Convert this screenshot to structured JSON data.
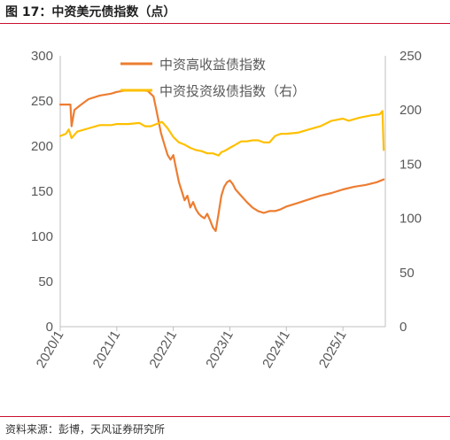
{
  "figure_title": "图 17：中资美元债指数（点）",
  "source_note": "资料来源：彭博，天风证券研究所",
  "colors": {
    "high_yield": "#ED7D31",
    "aggregate": "#FFC000",
    "rule": "#c8102e",
    "axis": "#bfbfbf"
  },
  "chart_data": {
    "type": "line",
    "title": "",
    "xlabel": "",
    "ylabel": "",
    "ylabel_right": "",
    "x_tick_labels": [
      "2020/1",
      "2021/1",
      "2022/1",
      "2023/1",
      "2024/1",
      "2025/1"
    ],
    "x_range": [
      2020.0,
      2025.75
    ],
    "y_left": {
      "ylim": [
        0,
        300
      ],
      "ticks": [
        "0",
        "50",
        "100",
        "150",
        "200",
        "250",
        "300"
      ]
    },
    "y_right": {
      "ylim": [
        0,
        250
      ],
      "ticks": [
        "0",
        "50",
        "100",
        "150",
        "200",
        "250"
      ]
    },
    "grid": false,
    "legend_position": "top-center",
    "series": [
      {
        "name": "中资高收益债指数",
        "axis": "left",
        "color": "#ED7D31",
        "x": [
          2020.0,
          2020.18,
          2020.2,
          2020.25,
          2020.35,
          2020.5,
          2020.7,
          2020.9,
          2021.0,
          2021.2,
          2021.4,
          2021.55,
          2021.65,
          2021.7,
          2021.78,
          2021.85,
          2021.9,
          2021.95,
          2022.0,
          2022.05,
          2022.1,
          2022.15,
          2022.2,
          2022.25,
          2022.3,
          2022.35,
          2022.4,
          2022.45,
          2022.5,
          2022.55,
          2022.6,
          2022.65,
          2022.7,
          2022.75,
          2022.8,
          2022.85,
          2022.9,
          2022.95,
          2023.0,
          2023.05,
          2023.1,
          2023.2,
          2023.3,
          2023.4,
          2023.5,
          2023.6,
          2023.7,
          2023.8,
          2023.9,
          2024.0,
          2024.2,
          2024.4,
          2024.6,
          2024.8,
          2025.0,
          2025.2,
          2025.4,
          2025.6,
          2025.72
        ],
        "y": [
          246,
          246,
          222,
          240,
          245,
          252,
          256,
          258,
          260,
          262,
          262,
          261,
          255,
          240,
          215,
          200,
          190,
          185,
          190,
          175,
          160,
          150,
          140,
          145,
          132,
          138,
          130,
          125,
          122,
          120,
          125,
          118,
          110,
          106,
          125,
          145,
          155,
          160,
          162,
          158,
          152,
          145,
          138,
          132,
          128,
          126,
          128,
          128,
          130,
          133,
          137,
          141,
          145,
          148,
          152,
          155,
          157,
          160,
          163
        ]
      },
      {
        "name": "中资投资级债指数（右）",
        "axis": "right",
        "color": "#FFC000",
        "x": [
          2020.0,
          2020.1,
          2020.15,
          2020.2,
          2020.3,
          2020.5,
          2020.7,
          2020.9,
          2021.0,
          2021.2,
          2021.4,
          2021.5,
          2021.6,
          2021.7,
          2021.8,
          2021.9,
          2022.0,
          2022.1,
          2022.2,
          2022.3,
          2022.4,
          2022.5,
          2022.6,
          2022.7,
          2022.8,
          2022.85,
          2022.9,
          2023.0,
          2023.1,
          2023.2,
          2023.3,
          2023.4,
          2023.5,
          2023.6,
          2023.7,
          2023.8,
          2023.9,
          2024.0,
          2024.2,
          2024.4,
          2024.6,
          2024.8,
          2025.0,
          2025.1,
          2025.3,
          2025.5,
          2025.65,
          2025.7,
          2025.72
        ],
        "y": [
          176,
          178,
          182,
          174,
          180,
          183,
          186,
          186,
          187,
          187,
          188,
          185,
          185,
          187,
          189,
          183,
          175,
          170,
          168,
          165,
          163,
          162,
          160,
          160,
          158,
          161,
          162,
          165,
          168,
          171,
          171,
          172,
          172,
          170,
          170,
          176,
          178,
          178,
          179,
          182,
          185,
          190,
          192,
          190,
          193,
          195,
          196,
          199,
          163
        ]
      }
    ]
  }
}
